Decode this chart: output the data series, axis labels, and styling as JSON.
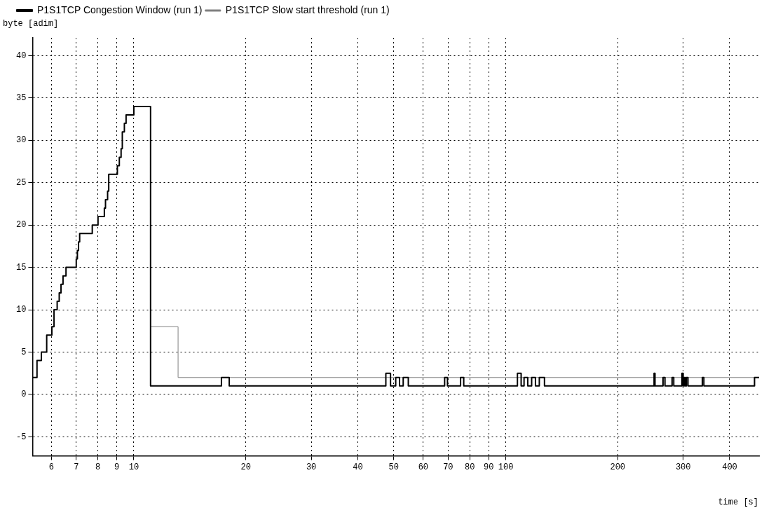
{
  "chart_data": {
    "type": "step",
    "xlabel": "time [s]",
    "ylabel": "byte [adim]",
    "log": "x",
    "grid": true,
    "legend": "top left",
    "marker": "none",
    "xlim": [
      5.34,
      480
    ],
    "xticks": [
      6,
      7,
      8,
      9,
      10,
      20,
      30,
      40,
      50,
      60,
      70,
      80,
      90,
      100,
      200,
      300,
      400
    ],
    "ylim": [
      -7.25,
      42.1
    ],
    "yticks": [
      -5,
      0,
      5,
      10,
      15,
      20,
      25,
      30,
      35,
      40
    ],
    "series": [
      {
        "name": "P1S1TCP Congestion Window (run 1)",
        "color": "#000000",
        "x": [
          5.34,
          5.49,
          5.64,
          5.83,
          6.02,
          6.1,
          6.22,
          6.3,
          6.37,
          6.45,
          6.57,
          7.0,
          7.05,
          7.1,
          7.15,
          7.73,
          8.01,
          8.33,
          8.39,
          8.5,
          8.56,
          9.03,
          9.14,
          9.24,
          9.31,
          9.43,
          9.53,
          10.0,
          11.09,
          17.2,
          18.05,
          47.6,
          49.0,
          50.6,
          51.8,
          53.0,
          54.7,
          68.5,
          69.7,
          75.6,
          77.1,
          107.5,
          110,
          112,
          114.6,
          117.4,
          120.2,
          123.1,
          127.1,
          250.5,
          252,
          264.8,
          268,
          280.1,
          283,
          297.7,
          300,
          302,
          304,
          306,
          309,
          337.8,
          341,
          466.6,
          480
        ],
        "values": [
          2,
          4,
          5,
          7,
          8,
          10,
          11,
          12,
          13,
          14,
          15,
          16,
          17,
          18,
          19,
          20,
          21,
          22,
          23,
          24,
          26,
          27,
          28,
          29,
          31,
          32,
          33,
          34,
          1,
          2,
          1,
          2.5,
          1,
          2,
          1,
          2,
          1,
          2,
          1,
          2,
          1,
          2.5,
          1,
          2,
          1,
          2,
          1,
          2,
          1,
          2.5,
          1,
          2,
          1,
          2,
          1,
          2.5,
          1,
          2,
          1,
          2,
          1,
          2,
          1,
          2,
          2
        ]
      },
      {
        "name": "P1S1TCP Slow start threshold (run 1)",
        "color": "#808080",
        "x": [
          11.09,
          13.15,
          480
        ],
        "values": [
          8,
          2,
          2
        ]
      }
    ]
  }
}
